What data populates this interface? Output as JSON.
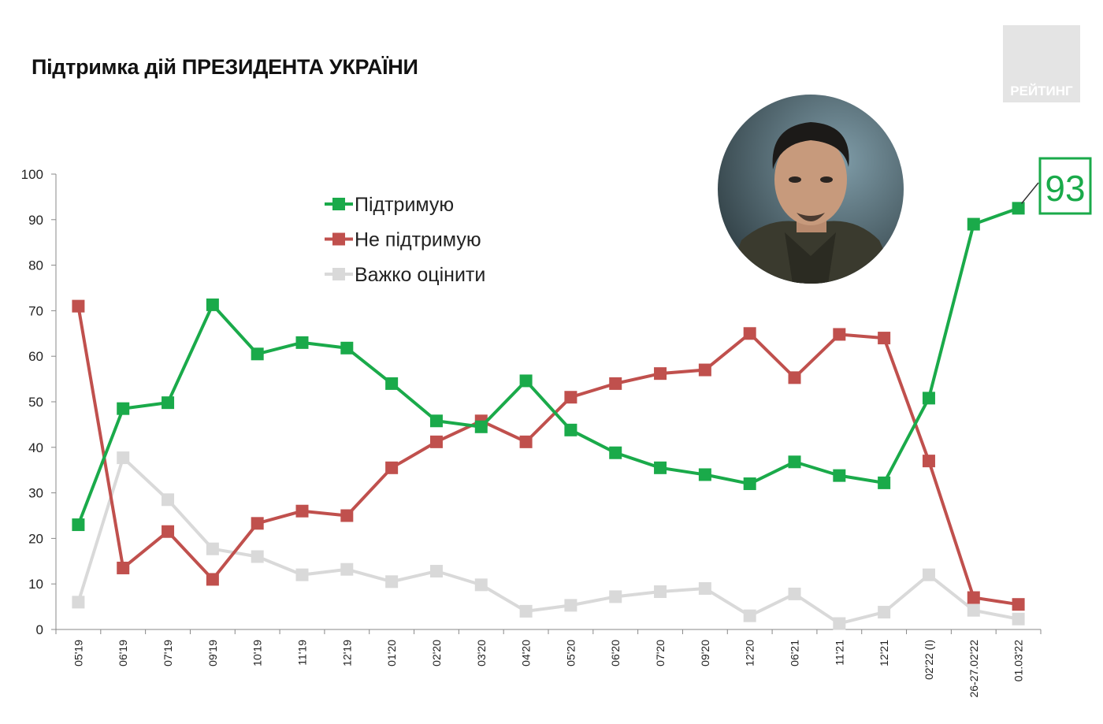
{
  "title": "Підтримка дій ПРЕЗИДЕНТА УКРАЇНИ",
  "logo_text": "РЕЙТИНГ",
  "photo": {
    "icon": "president-portrait"
  },
  "colors": {
    "support": "#1aaa4a",
    "oppose": "#c0504d",
    "unsure": "#d9d9d9",
    "axis": "#888888"
  },
  "chart_data": {
    "type": "line",
    "categories": [
      "05'19",
      "06'19",
      "07'19",
      "09'19",
      "10'19",
      "11'19",
      "12'19",
      "01'20",
      "02'20",
      "03'20",
      "04'20",
      "05'20",
      "06'20",
      "07'20",
      "09'20",
      "12'20",
      "06'21",
      "11'21",
      "12'21",
      "02'22 (I)",
      "26-27.02'22",
      "01.03'22"
    ],
    "series": [
      {
        "name": "Підтримую",
        "color": "#1aaa4a",
        "values": [
          23,
          48.5,
          49.8,
          71.3,
          60.5,
          63,
          61.8,
          54,
          45.8,
          44.5,
          54.6,
          43.8,
          38.8,
          35.5,
          34,
          32,
          36.8,
          33.8,
          32.2,
          50.8,
          89,
          92.5
        ]
      },
      {
        "name": "Не підтримую",
        "color": "#c0504d",
        "values": [
          71,
          13.5,
          21.5,
          11,
          23.3,
          26,
          25,
          35.5,
          41.2,
          45.8,
          41.2,
          51,
          54,
          56.2,
          57,
          65,
          55.3,
          64.8,
          64,
          37,
          7,
          5.5
        ]
      },
      {
        "name": "Важко оцінити",
        "color": "#d9d9d9",
        "values": [
          6,
          37.7,
          28.5,
          17.7,
          16,
          12,
          13.2,
          10.5,
          12.8,
          9.8,
          4,
          5.3,
          7.2,
          8.3,
          9,
          3,
          7.8,
          1.3,
          3.8,
          12,
          4.2,
          2.3
        ]
      }
    ],
    "yticks": [
      0,
      10,
      20,
      30,
      40,
      50,
      60,
      70,
      80,
      90,
      100
    ],
    "ylim": [
      0,
      100
    ],
    "callout": "93",
    "legend_position": "top-center",
    "grid": false
  }
}
